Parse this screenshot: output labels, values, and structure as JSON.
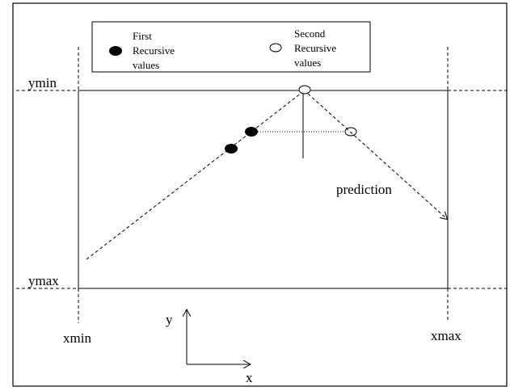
{
  "legend": {
    "first_label_line1": "First",
    "first_label_line2": "Recursive",
    "first_label_line3": "values",
    "second_label_line1": "Second",
    "second_label_line2": "Recursive",
    "second_label_line3": "values"
  },
  "labels": {
    "ymin": "ymin",
    "ymax": "ymax",
    "xmin": "xmin",
    "xmax": "xmax",
    "prediction": "prediction",
    "axis_y": "y",
    "axis_x": "x"
  },
  "colors": {
    "line": "#000000",
    "background": "#ffffff"
  }
}
